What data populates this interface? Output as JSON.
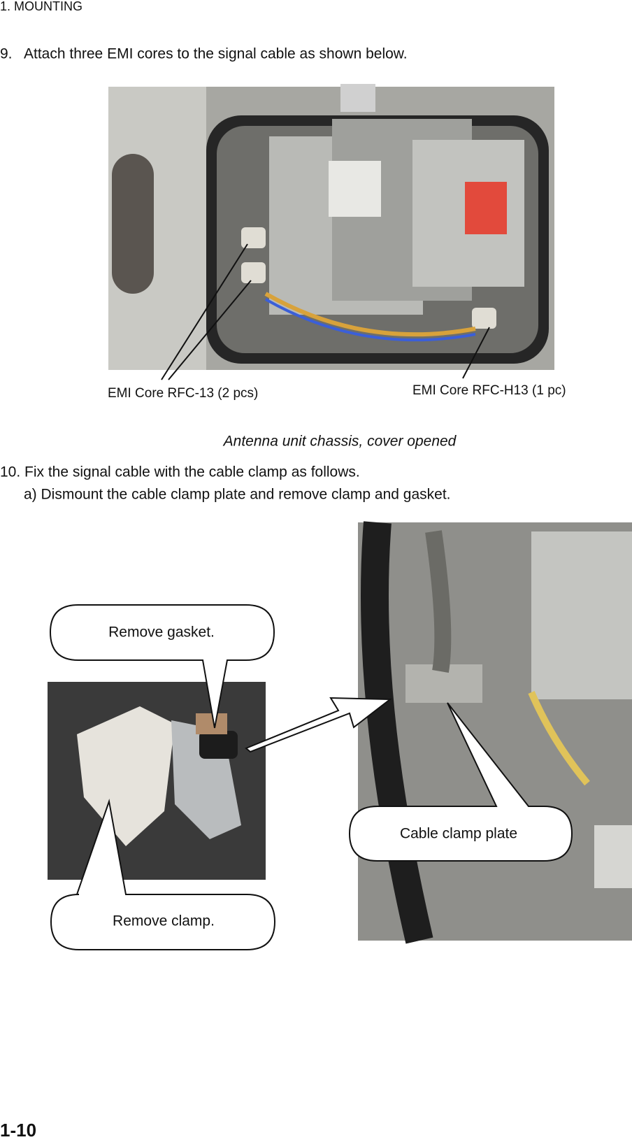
{
  "header": {
    "section": "1. MOUNTING"
  },
  "steps": [
    {
      "number": "9.",
      "text": "Attach three EMI cores to the signal cable as shown below."
    },
    {
      "number": "10.",
      "text": "Fix the signal cable with the cable clamp as follows.",
      "substeps": [
        "a) Dismount the cable clamp plate and remove clamp and gasket."
      ]
    }
  ],
  "figure1": {
    "labels": [
      "EMI Core RFC-13 (2 pcs)",
      "EMI Core RFC-H13 (1 pc)"
    ],
    "caption": "Antenna unit chassis, cover opened"
  },
  "figure2": {
    "callouts": [
      "Remove gasket.",
      "Remove clamp.",
      "Cable clamp plate"
    ]
  },
  "footer": {
    "page": "1-10"
  }
}
